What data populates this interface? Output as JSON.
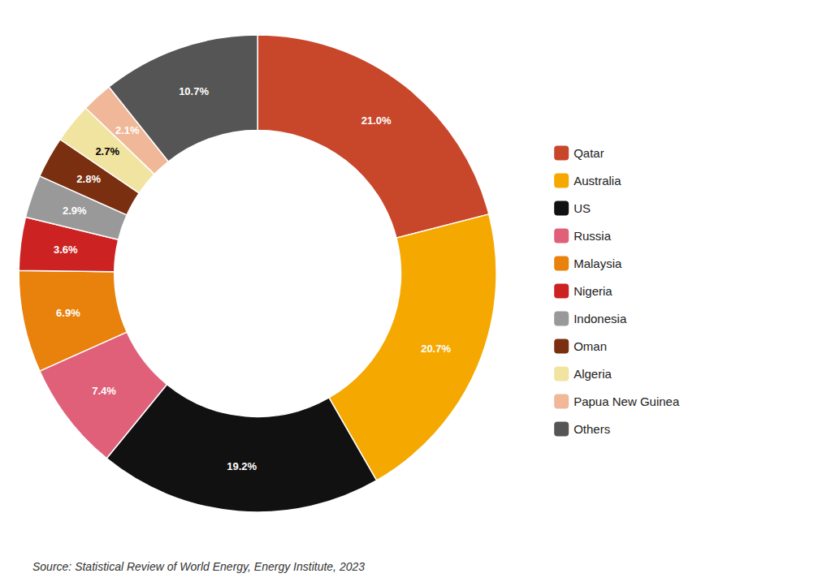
{
  "chart_data": {
    "type": "donut",
    "categories": [
      "Qatar",
      "Australia",
      "US",
      "Russia",
      "Malaysia",
      "Nigeria",
      "Indonesia",
      "Oman",
      "Algeria",
      "Papua New Guinea",
      "Others"
    ],
    "values": [
      21.0,
      20.7,
      19.2,
      7.4,
      6.9,
      3.6,
      2.9,
      2.8,
      2.7,
      2.1,
      10.7
    ],
    "value_labels": [
      "21.0%",
      "20.7%",
      "19.2%",
      "7.4%",
      "6.9%",
      "3.6%",
      "2.9%",
      "2.8%",
      "2.7%",
      "2.1%",
      "10.7%"
    ],
    "colors": [
      "#c8472b",
      "#f5a800",
      "#111111",
      "#e0607a",
      "#e8820c",
      "#cc2222",
      "#999999",
      "#7a3010",
      "#f0e4a0",
      "#f0b898",
      "#555555"
    ],
    "data_labels": true,
    "legend": "right",
    "annotations": [
      "Source: Statistical Review of World Energy, Energy Institute, 2023"
    ]
  }
}
